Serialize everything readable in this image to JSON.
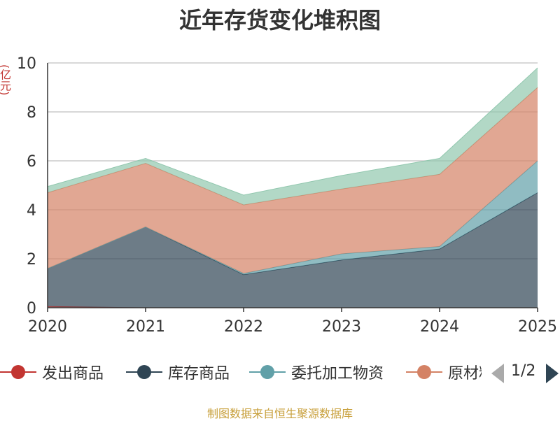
{
  "title": "近年存货变化堆积图",
  "unit_label": "(亿元)",
  "source": "制图数据来自恒生聚源数据库",
  "pager": {
    "text": "1/2"
  },
  "legend": [
    {
      "name": "发出商品",
      "color": "#c23531"
    },
    {
      "name": "库存商品",
      "color": "#2f4554"
    },
    {
      "name": "委托加工物资",
      "color": "#61a0a8"
    },
    {
      "name": "原材料",
      "color": "#d48265"
    }
  ],
  "chart_data": {
    "type": "area",
    "stacked": true,
    "x": [
      "2020",
      "2021",
      "2022",
      "2023",
      "2024",
      "2025"
    ],
    "ylim": [
      0,
      10
    ],
    "yticks": [
      0,
      2,
      4,
      6,
      8,
      10
    ],
    "ylabel": "(亿元)",
    "grid": true,
    "series": [
      {
        "name": "发出商品",
        "color": "#c23531",
        "values": [
          0.05,
          0,
          0,
          0,
          0,
          0
        ]
      },
      {
        "name": "库存商品",
        "color": "#2f4554",
        "values": [
          1.55,
          3.3,
          1.35,
          1.95,
          2.4,
          4.7
        ]
      },
      {
        "name": "委托加工物资",
        "color": "#61a0a8",
        "values": [
          0,
          0,
          0.05,
          0.25,
          0.1,
          1.3
        ]
      },
      {
        "name": "原材料",
        "color": "#d48265",
        "values": [
          3.1,
          2.6,
          2.8,
          2.65,
          2.95,
          3.0
        ]
      },
      {
        "color": "#91c7ae",
        "values": [
          0.25,
          0.2,
          0.4,
          0.55,
          0.65,
          0.8
        ]
      }
    ]
  }
}
